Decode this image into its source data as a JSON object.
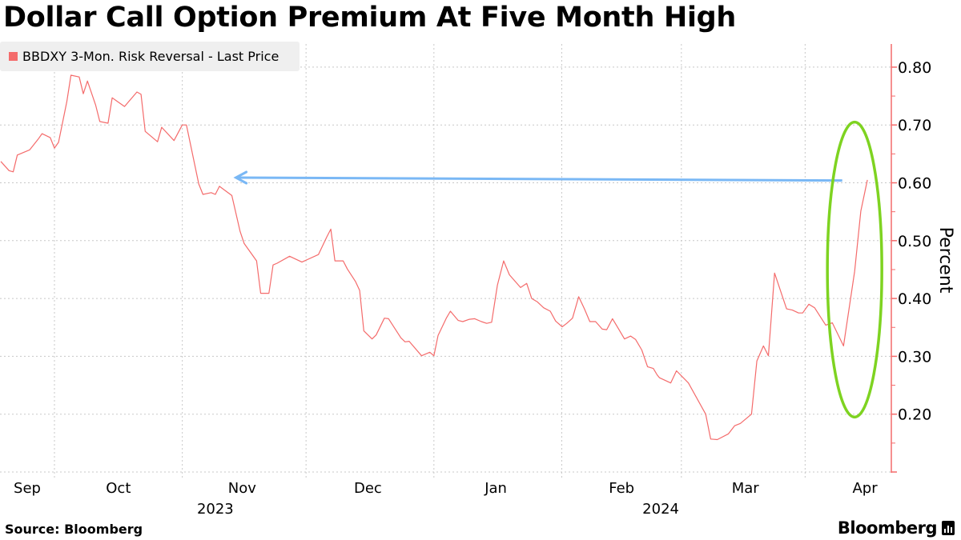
{
  "chart_data": {
    "type": "line",
    "title": "Dollar Call Option Premium At Five Month High",
    "ylabel": "Percent",
    "xlabel": "",
    "x_unit": "days since 2023-10-01",
    "xlim": [
      -13.2,
      202.9
    ],
    "ylim": [
      0.1,
      0.84
    ],
    "y_ticks": [
      0.2,
      0.3,
      0.4,
      0.5,
      0.6,
      0.7,
      0.8
    ],
    "y_tick_labels": [
      "0.20",
      "0.30",
      "0.40",
      "0.50",
      "0.60",
      "0.70",
      "0.80"
    ],
    "y_axis_side": "right",
    "grid": true,
    "month_boundaries": [
      0,
      31,
      61,
      92,
      123,
      152,
      182
    ],
    "x_tick_labels": [
      {
        "label": "Sep",
        "at": -6.6
      },
      {
        "label": "Oct",
        "at": 15.5
      },
      {
        "label": "Nov",
        "at": 45.5
      },
      {
        "label": "Dec",
        "at": 76
      },
      {
        "label": "Jan",
        "at": 107
      },
      {
        "label": "Feb",
        "at": 137.5
      },
      {
        "label": "Mar",
        "at": 167.5
      },
      {
        "label": "Apr",
        "at": 196.5
      }
    ],
    "year_labels": [
      {
        "label": "2023",
        "at": 39
      },
      {
        "label": "2024",
        "at": 147
      }
    ],
    "legend": {
      "placement": "top-left",
      "entries": [
        "BBDXY 3-Mon. Risk Reversal - Last Price"
      ]
    },
    "series": [
      {
        "name": "BBDXY 3-Mon. Risk Reversal - Last Price",
        "color": "#f46b6b",
        "points": [
          [
            -13,
            0.637
          ],
          [
            -11,
            0.621
          ],
          [
            -10,
            0.619
          ],
          [
            -9,
            0.648
          ],
          [
            -6,
            0.657
          ],
          [
            -4,
            0.675
          ],
          [
            -3,
            0.685
          ],
          [
            -1,
            0.678
          ],
          [
            0,
            0.66
          ],
          [
            1,
            0.67
          ],
          [
            3,
            0.74
          ],
          [
            4,
            0.786
          ],
          [
            6,
            0.783
          ],
          [
            7,
            0.754
          ],
          [
            8,
            0.776
          ],
          [
            10,
            0.734
          ],
          [
            11,
            0.706
          ],
          [
            13,
            0.703
          ],
          [
            14,
            0.747
          ],
          [
            15,
            0.742
          ],
          [
            17,
            0.732
          ],
          [
            20,
            0.757
          ],
          [
            21,
            0.753
          ],
          [
            22,
            0.689
          ],
          [
            25,
            0.671
          ],
          [
            26,
            0.696
          ],
          [
            29,
            0.673
          ],
          [
            31,
            0.7
          ],
          [
            32,
            0.7
          ],
          [
            35,
            0.598
          ],
          [
            36,
            0.58
          ],
          [
            38,
            0.583
          ],
          [
            39,
            0.58
          ],
          [
            40,
            0.594
          ],
          [
            43,
            0.578
          ],
          [
            45,
            0.516
          ],
          [
            46,
            0.495
          ],
          [
            49,
            0.465
          ],
          [
            50,
            0.409
          ],
          [
            52,
            0.409
          ],
          [
            53,
            0.458
          ],
          [
            54,
            0.461
          ],
          [
            57,
            0.473
          ],
          [
            60,
            0.463
          ],
          [
            64,
            0.476
          ],
          [
            66,
            0.506
          ],
          [
            67,
            0.52
          ],
          [
            68,
            0.465
          ],
          [
            70,
            0.465
          ],
          [
            71,
            0.451
          ],
          [
            73,
            0.429
          ],
          [
            74,
            0.414
          ],
          [
            75,
            0.344
          ],
          [
            77,
            0.33
          ],
          [
            78,
            0.337
          ],
          [
            80,
            0.366
          ],
          [
            81,
            0.365
          ],
          [
            84,
            0.332
          ],
          [
            85,
            0.325
          ],
          [
            86,
            0.326
          ],
          [
            89,
            0.301
          ],
          [
            91,
            0.307
          ],
          [
            92,
            0.301
          ],
          [
            93,
            0.336
          ],
          [
            95,
            0.366
          ],
          [
            96,
            0.378
          ],
          [
            97.9,
            0.362
          ],
          [
            99,
            0.36
          ],
          [
            100.6,
            0.364
          ],
          [
            101.9,
            0.365
          ],
          [
            103.5,
            0.36
          ],
          [
            104.8,
            0.357
          ],
          [
            106,
            0.359
          ],
          [
            107.4,
            0.423
          ],
          [
            108.9,
            0.465
          ],
          [
            110.3,
            0.441
          ],
          [
            113,
            0.419
          ],
          [
            114.5,
            0.426
          ],
          [
            115.7,
            0.4
          ],
          [
            117.1,
            0.394
          ],
          [
            118.6,
            0.384
          ],
          [
            120.2,
            0.378
          ],
          [
            121.5,
            0.361
          ],
          [
            123.1,
            0.351
          ],
          [
            124.2,
            0.357
          ],
          [
            125.6,
            0.366
          ],
          [
            127.1,
            0.403
          ],
          [
            128.5,
            0.382
          ],
          [
            129.8,
            0.36
          ],
          [
            131.2,
            0.36
          ],
          [
            132.8,
            0.347
          ],
          [
            133.9,
            0.346
          ],
          [
            135.3,
            0.365
          ],
          [
            136.8,
            0.347
          ],
          [
            138.2,
            0.33
          ],
          [
            139.7,
            0.335
          ],
          [
            140.9,
            0.329
          ],
          [
            142.4,
            0.311
          ],
          [
            143.8,
            0.282
          ],
          [
            145.2,
            0.279
          ],
          [
            146.1,
            0.268
          ],
          [
            146.7,
            0.263
          ],
          [
            149.4,
            0.254
          ],
          [
            150.8,
            0.275
          ],
          [
            153.7,
            0.254
          ],
          [
            157.9,
            0.2
          ],
          [
            159.1,
            0.157
          ],
          [
            160.7,
            0.156
          ],
          [
            163.4,
            0.166
          ],
          [
            164.9,
            0.18
          ],
          [
            166.3,
            0.184
          ],
          [
            169,
            0.2
          ],
          [
            170.3,
            0.292
          ],
          [
            171.9,
            0.318
          ],
          [
            173.1,
            0.301
          ],
          [
            174.6,
            0.444
          ],
          [
            177.5,
            0.382
          ],
          [
            178.9,
            0.38
          ],
          [
            180.4,
            0.375
          ],
          [
            181.4,
            0.375
          ],
          [
            182.9,
            0.39
          ],
          [
            184.3,
            0.384
          ],
          [
            187,
            0.354
          ],
          [
            188.6,
            0.358
          ],
          [
            191.3,
            0.318
          ],
          [
            194,
            0.447
          ],
          [
            195.5,
            0.551
          ],
          [
            197.1,
            0.605
          ]
        ]
      }
    ],
    "annotations": [
      {
        "type": "arrow",
        "color": "#7ab8f5",
        "from": [
          191,
          0.604
        ],
        "to": [
          44,
          0.609
        ]
      },
      {
        "type": "ellipse",
        "color": "#7ed321",
        "center": [
          194,
          0.45
        ],
        "y_range": [
          0.195,
          0.705
        ]
      }
    ],
    "accent_colors": {
      "axis": "#f46b6b",
      "grid": "#c8c8c8"
    }
  },
  "footer": {
    "source": "Source: Bloomberg",
    "brand": "Bloomberg"
  }
}
